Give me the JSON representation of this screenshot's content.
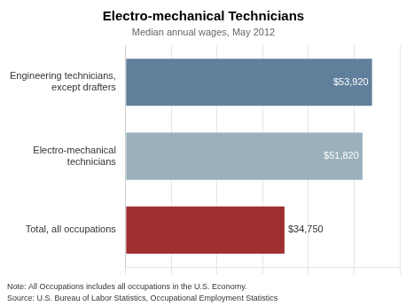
{
  "chart_data": {
    "type": "bar",
    "orientation": "horizontal",
    "title": "Electro-mechanical Technicians",
    "subtitle": "Median annual wages, May 2012",
    "categories": [
      "Engineering technicians,\nexcept drafters",
      "Electro-mechanical\ntechnicians",
      "Total, all occupations"
    ],
    "values": [
      53920,
      51820,
      34750
    ],
    "value_labels": [
      "$53,920",
      "$51,820",
      "$34,750"
    ],
    "data_labels": true,
    "colors": [
      "#5f7f9a",
      "#9ab0bc",
      "#a03030"
    ],
    "xlim": [
      0,
      60000
    ],
    "xticks": [
      0,
      10000,
      20000,
      30000,
      40000,
      50000,
      60000
    ],
    "grid": true,
    "tick_labels": "y",
    "annotations": [
      "Note: All Occupations includes all occupations in the U.S. Economy.",
      "Source: U.S. Bureau of Labor Statistics, Occupational Employment Statistics"
    ]
  }
}
